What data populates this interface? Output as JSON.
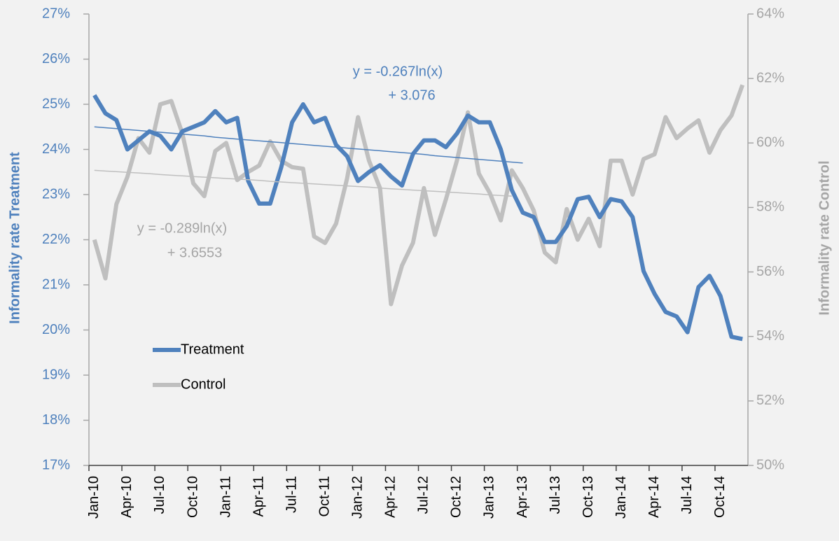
{
  "chart_data": {
    "type": "line",
    "categories": [
      "Jan-10",
      null,
      null,
      "Apr-10",
      null,
      null,
      "Jul-10",
      null,
      null,
      "Oct-10",
      null,
      null,
      "Jan-11",
      null,
      null,
      "Apr-11",
      null,
      null,
      "Jul-11",
      null,
      null,
      "Oct-11",
      null,
      null,
      "Jan-12",
      null,
      null,
      "Apr-12",
      null,
      null,
      "Jul-12",
      null,
      null,
      "Oct-12",
      null,
      null,
      "Jan-13",
      null,
      null,
      "Apr-13",
      null,
      null,
      "Jul-13",
      null,
      null,
      "Oct-13",
      null,
      null,
      "Jan-14",
      null,
      null,
      "Apr-14",
      null,
      null,
      "Jul-14",
      null,
      null,
      "Oct-14",
      null,
      null
    ],
    "series": [
      {
        "name": "Treatment",
        "color": "#4f81bd",
        "axis": "y",
        "values": [
          25.2,
          24.8,
          24.65,
          24.0,
          24.2,
          24.4,
          24.3,
          24.0,
          24.4,
          24.5,
          24.6,
          24.85,
          24.6,
          24.7,
          23.3,
          22.8,
          22.8,
          23.6,
          24.6,
          25.0,
          24.6,
          24.7,
          24.1,
          23.85,
          23.3,
          23.5,
          23.65,
          23.4,
          23.2,
          23.9,
          24.2,
          24.2,
          24.05,
          24.35,
          24.75,
          24.6,
          24.6,
          24.0,
          23.1,
          22.6,
          22.5,
          21.95,
          21.95,
          22.3,
          22.9,
          22.95,
          22.5,
          22.9,
          22.85,
          22.5,
          21.3,
          20.8,
          20.4,
          20.3,
          19.95,
          20.95,
          21.2,
          20.75,
          19.85,
          19.8
        ]
      },
      {
        "name": "Control",
        "color": "#bfbfbf",
        "axis": "y2",
        "values": [
          57.0,
          55.8,
          58.1,
          58.95,
          60.15,
          59.7,
          61.2,
          61.3,
          60.3,
          58.75,
          58.35,
          59.75,
          60.0,
          58.85,
          59.1,
          59.3,
          60.05,
          59.45,
          59.25,
          59.2,
          57.1,
          56.9,
          57.5,
          58.9,
          60.8,
          59.45,
          58.6,
          55.0,
          56.2,
          56.9,
          58.6,
          57.15,
          58.25,
          59.45,
          60.95,
          59.05,
          58.45,
          57.6,
          59.15,
          58.6,
          57.9,
          56.6,
          56.3,
          57.95,
          57.0,
          57.65,
          56.8,
          59.45,
          59.45,
          58.4,
          59.5,
          59.65,
          60.8,
          60.15,
          60.45,
          60.7,
          59.7,
          60.4,
          60.85,
          61.8
        ]
      }
    ],
    "trendlines": [
      {
        "color": "#4f81bd",
        "axis": "y",
        "equation": [
          "y = -0.267ln(x)",
          "+ 3.076"
        ],
        "values": [
          24.5,
          24.48,
          24.46,
          24.44,
          24.42,
          24.4,
          24.38,
          24.36,
          24.34,
          24.32,
          24.3,
          24.27,
          24.25,
          24.23,
          24.21,
          24.19,
          24.17,
          24.15,
          24.13,
          24.11,
          24.09,
          24.07,
          24.05,
          24.03,
          24.01,
          23.99,
          23.97,
          23.95,
          23.93,
          23.91,
          23.89,
          23.86,
          23.84,
          23.82,
          23.8,
          23.78,
          23.76,
          23.74,
          23.72,
          23.7,
          null,
          null,
          null,
          null,
          null,
          null,
          null,
          null,
          null,
          null,
          null,
          null,
          null,
          null,
          null,
          null,
          null,
          null,
          null,
          null
        ]
      },
      {
        "color": "#bfbfbf",
        "axis": "y2",
        "equation": [
          "y = -0.289ln(x)",
          "+ 3.6553"
        ],
        "values": [
          59.15,
          59.13,
          59.11,
          59.09,
          59.07,
          59.05,
          59.02,
          59.0,
          58.98,
          58.96,
          58.94,
          58.92,
          58.9,
          58.88,
          58.86,
          58.84,
          58.81,
          58.79,
          58.77,
          58.75,
          58.73,
          58.71,
          58.69,
          58.67,
          58.65,
          58.63,
          58.6,
          58.58,
          58.56,
          58.54,
          58.52,
          58.5,
          58.48,
          58.46,
          58.44,
          58.42,
          58.39,
          58.37,
          58.35,
          null,
          null,
          null,
          null,
          null,
          null,
          null,
          null,
          null,
          null,
          null,
          null,
          null,
          null,
          null,
          null,
          null,
          null,
          null,
          null,
          null
        ]
      }
    ],
    "ylabel": "Informality rate Treatment",
    "y2label": "Informality rate Control",
    "ylim": [
      17,
      27
    ],
    "yticks": [
      {
        "value": 17,
        "label": "17%"
      },
      {
        "value": 18,
        "label": "18%"
      },
      {
        "value": 19,
        "label": "19%"
      },
      {
        "value": 20,
        "label": "20%"
      },
      {
        "value": 21,
        "label": "21%"
      },
      {
        "value": 22,
        "label": "22%"
      },
      {
        "value": 23,
        "label": "23%"
      },
      {
        "value": 24,
        "label": "24%"
      },
      {
        "value": 25,
        "label": "25%"
      },
      {
        "value": 26,
        "label": "26%"
      },
      {
        "value": 27,
        "label": "27%"
      }
    ],
    "y2lim": [
      50,
      64
    ],
    "y2ticks": [
      {
        "value": 50,
        "label": "50%"
      },
      {
        "value": 52,
        "label": "52%"
      },
      {
        "value": 54,
        "label": "54%"
      },
      {
        "value": 56,
        "label": "56%"
      },
      {
        "value": 58,
        "label": "58%"
      },
      {
        "value": 60,
        "label": "60%"
      },
      {
        "value": 62,
        "label": "62%"
      },
      {
        "value": 64,
        "label": "64%"
      }
    ],
    "grid": false,
    "legend": "left"
  }
}
